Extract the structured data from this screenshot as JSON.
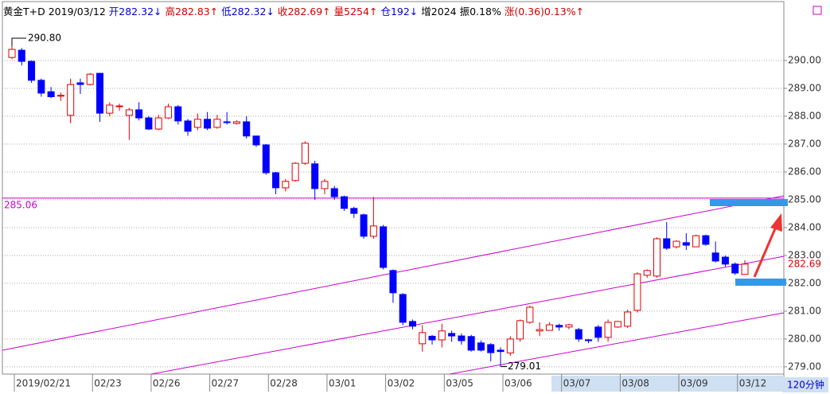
{
  "chart_data": {
    "type": "candlestick",
    "header": {
      "symbol": "黄金T+D",
      "date": "2019/03/12",
      "items": [
        {
          "label": "开",
          "value": "282.32↓",
          "color": "#0000cc"
        },
        {
          "label": "高",
          "value": "282.83↑",
          "color": "#cc0000"
        },
        {
          "label": "低",
          "value": "282.32↓",
          "color": "#0000cc"
        },
        {
          "label": "收",
          "value": "282.69↑",
          "color": "#cc0000"
        },
        {
          "label": "量",
          "value": "5254↑",
          "color": "#cc0000"
        },
        {
          "label": "仓",
          "value": "192↓",
          "color": "#0000cc"
        },
        {
          "label": "增",
          "value": "2024",
          "color": "#000000"
        },
        {
          "label": "振",
          "value": "0.18%",
          "color": "#000000"
        },
        {
          "label": "涨",
          "value": "(0.36)0.13%↑",
          "color": "#cc0000"
        }
      ]
    },
    "period": "120分钟",
    "categories": [
      "2019/02/21",
      null,
      null,
      null,
      null,
      null,
      null,
      null,
      "02/23",
      null,
      null,
      null,
      null,
      null,
      "02/26",
      null,
      null,
      null,
      null,
      null,
      "02/27",
      null,
      null,
      null,
      null,
      null,
      "02/28",
      null,
      null,
      null,
      null,
      null,
      "03/01",
      null,
      null,
      null,
      null,
      null,
      "03/02",
      null,
      null,
      null,
      null,
      null,
      "03/05",
      null,
      null,
      null,
      null,
      null,
      "03/06",
      null,
      null,
      null,
      null,
      null,
      "03/07",
      null,
      null,
      null,
      null,
      null,
      "03/08",
      null,
      null,
      null,
      null,
      null,
      "03/09",
      null,
      null,
      null,
      null,
      null,
      "03/12",
      null
    ],
    "open": [
      290.11,
      290.37,
      289.97,
      289.29,
      288.88,
      288.73,
      288.03,
      289.2,
      289.14,
      289.54,
      288.11,
      288.35,
      288.03,
      288.23,
      287.94,
      287.54,
      287.94,
      288.34,
      287.83,
      287.6,
      287.89,
      287.6,
      287.8,
      287.74,
      287.8,
      287.29,
      286.97,
      285.97,
      285.43,
      285.69,
      286.31,
      286.29,
      285.4,
      285.4,
      285.11,
      284.69,
      284.46,
      283.69,
      284.03,
      282.46,
      281.6,
      280.63,
      279.83,
      280.1,
      279.97,
      280.2,
      280.11,
      280.09,
      279.86,
      279.8,
      279.6,
      279.5,
      280.0,
      280.6,
      280.29,
      280.31,
      280.49,
      280.43,
      280.34,
      279.97,
      280.43,
      280.06,
      280.43,
      280.46,
      281.03,
      282.29,
      282.26,
      283.6,
      283.31,
      283.46,
      283.31,
      283.71,
      283.09,
      282.94,
      282.69,
      282.32
    ],
    "high": [
      290.8,
      290.45,
      290.0,
      289.35,
      289.05,
      288.85,
      289.35,
      289.35,
      289.55,
      289.55,
      288.5,
      288.45,
      288.3,
      288.5,
      288.0,
      288.05,
      288.45,
      288.4,
      287.9,
      288.1,
      288.15,
      288.05,
      288.15,
      287.85,
      288.0,
      287.3,
      287.0,
      286.0,
      285.75,
      286.35,
      287.1,
      286.4,
      285.75,
      285.5,
      285.15,
      284.75,
      284.5,
      285.1,
      284.1,
      282.5,
      281.65,
      280.7,
      280.5,
      280.15,
      280.55,
      280.3,
      280.2,
      280.15,
      279.95,
      279.85,
      279.7,
      280.1,
      280.7,
      281.2,
      280.6,
      280.6,
      280.55,
      280.55,
      280.4,
      280.0,
      280.5,
      280.7,
      280.65,
      281.05,
      282.4,
      282.5,
      283.65,
      284.2,
      283.55,
      283.8,
      283.75,
      283.75,
      283.5,
      283.0,
      282.75,
      282.83
    ],
    "low": [
      290.05,
      289.82,
      289.2,
      288.7,
      288.65,
      288.55,
      287.75,
      288.8,
      289.1,
      287.8,
      288.0,
      288.2,
      287.15,
      287.85,
      287.5,
      287.5,
      287.9,
      287.7,
      287.3,
      287.5,
      287.5,
      287.55,
      287.7,
      287.7,
      287.2,
      286.9,
      285.9,
      285.2,
      285.3,
      285.65,
      286.25,
      285.0,
      285.2,
      285.0,
      284.6,
      284.35,
      283.6,
      283.6,
      282.5,
      281.3,
      280.5,
      280.35,
      279.55,
      279.8,
      279.7,
      279.9,
      279.8,
      279.55,
      279.55,
      279.2,
      279.01,
      279.4,
      279.9,
      280.55,
      280.1,
      280.3,
      280.3,
      280.35,
      279.9,
      279.85,
      279.9,
      279.9,
      280.4,
      280.4,
      280.95,
      282.2,
      282.2,
      283.2,
      283.25,
      283.2,
      283.3,
      283.35,
      282.75,
      282.6,
      282.3,
      282.32
    ],
    "close": [
      290.4,
      289.97,
      289.29,
      288.83,
      288.7,
      288.75,
      289.14,
      289.14,
      289.51,
      288.11,
      288.4,
      288.37,
      288.23,
      287.94,
      287.54,
      287.94,
      288.34,
      287.83,
      287.46,
      287.89,
      287.57,
      287.89,
      287.77,
      287.8,
      287.29,
      286.97,
      285.97,
      285.43,
      285.66,
      286.31,
      287.03,
      285.4,
      285.66,
      285.11,
      284.69,
      284.51,
      283.69,
      284.06,
      282.57,
      281.66,
      280.6,
      280.46,
      280.23,
      279.97,
      280.29,
      280.11,
      279.94,
      279.6,
      279.6,
      279.51,
      279.55,
      280.0,
      280.66,
      281.14,
      280.34,
      280.51,
      280.43,
      280.51,
      280.0,
      279.94,
      280.06,
      280.6,
      280.63,
      280.97,
      282.34,
      282.46,
      283.6,
      283.26,
      283.51,
      283.37,
      283.71,
      283.4,
      282.8,
      282.69,
      282.37,
      282.69
    ],
    "up_color": "#e00000",
    "down_color": "#0000ff",
    "max_label": "290.80",
    "min_label": "279.01",
    "hline": 285.06,
    "hline_color": "#cc00cc",
    "ylim": [
      278.74,
      292.03
    ],
    "yticks": [
      {
        "value": 279,
        "label": "279.00"
      },
      {
        "value": 280,
        "label": "280.00"
      },
      {
        "value": 281,
        "label": "281.00"
      },
      {
        "value": 282,
        "label": "282.00"
      },
      {
        "value": 283,
        "label": "283.00"
      },
      {
        "value": 284,
        "label": "284.00"
      },
      {
        "value": 285,
        "label": "285.00"
      },
      {
        "value": 286,
        "label": "286.00"
      },
      {
        "value": 287,
        "label": "287.00"
      },
      {
        "value": 288,
        "label": "288.00"
      },
      {
        "value": 289,
        "label": "289.00"
      },
      {
        "value": 290,
        "label": "290.00"
      }
    ],
    "grid": true
  }
}
